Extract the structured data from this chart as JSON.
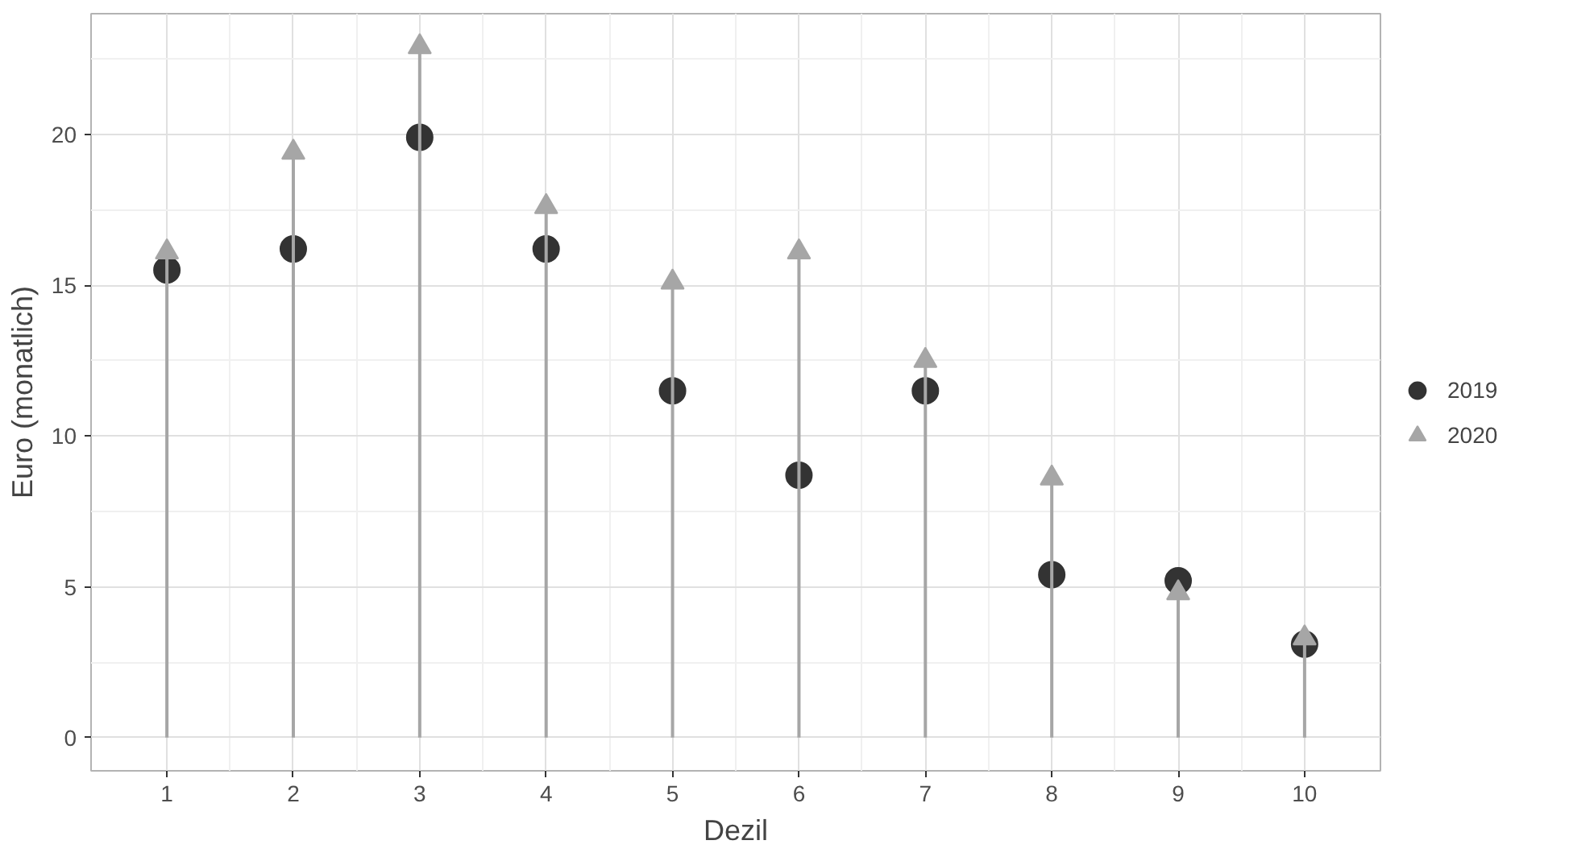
{
  "chart_data": {
    "type": "lollipop",
    "xlabel": "Dezil",
    "ylabel": "Euro (monatlich)",
    "x": [
      1,
      2,
      3,
      4,
      5,
      6,
      7,
      8,
      9,
      10
    ],
    "series": [
      {
        "name": "2019",
        "type": "scatter",
        "marker": "circle",
        "color": "#333333",
        "values": [
          15.5,
          16.2,
          19.9,
          16.2,
          11.5,
          8.7,
          11.5,
          5.4,
          5.2,
          3.1
        ]
      },
      {
        "name": "2020",
        "marker": "triangle",
        "color": "#a6a6a6",
        "values": [
          16.1,
          19.4,
          22.9,
          17.6,
          15.1,
          16.1,
          12.5,
          8.6,
          4.8,
          3.3
        ]
      }
    ],
    "xlim": [
      0.4,
      10.6
    ],
    "ylim": [
      -1.1,
      24.0
    ],
    "xticks": [
      1,
      2,
      3,
      4,
      5,
      6,
      7,
      8,
      9,
      10
    ],
    "yticks": [
      0,
      5,
      10,
      15,
      20
    ],
    "grid": true,
    "legend": "right"
  }
}
